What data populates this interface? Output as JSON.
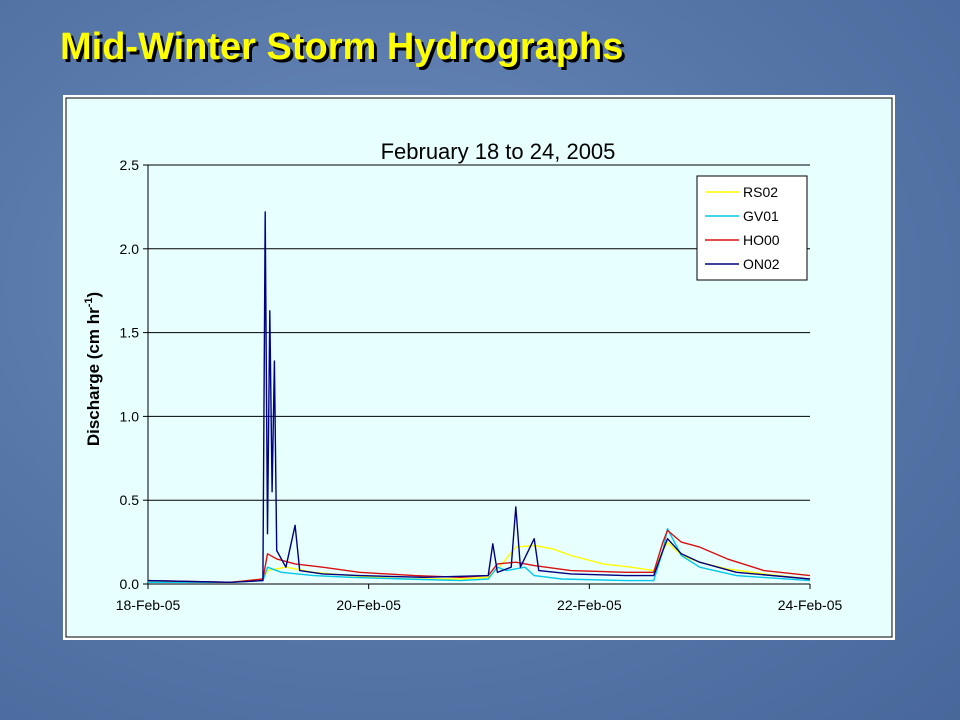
{
  "slide": {
    "title": "Mid-Winter Storm Hydrographs"
  },
  "colors": {
    "plot_background": "#e8ffff",
    "title_color": "#ffff00"
  },
  "chart_data": {
    "type": "line",
    "title": "February 18 to 24, 2005",
    "ylabel": "Discharge (cm hr",
    "ylabel_superscript": "-1",
    "ylabel_close": ")",
    "xlabel": "",
    "xlim": [
      "2005-02-18",
      "2005-02-24"
    ],
    "ylim": [
      0,
      2.5
    ],
    "x_ticks": [
      {
        "date": "2005-02-18",
        "label": "18-Feb-05"
      },
      {
        "date": "2005-02-20",
        "label": "20-Feb-05"
      },
      {
        "date": "2005-02-22",
        "label": "22-Feb-05"
      },
      {
        "date": "2005-02-24",
        "label": "24-Feb-05"
      }
    ],
    "y_ticks": [
      "0.0",
      "0.5",
      "1.0",
      "1.5",
      "2.0",
      "2.5"
    ],
    "y_tick_values": [
      0,
      0.5,
      1.0,
      1.5,
      2.0,
      2.5
    ],
    "grid": "horizontal",
    "legend": "top-right",
    "series": [
      {
        "name": "RS02",
        "color": "#ffff00",
        "points": [
          [
            "2005-02-18T00:00",
            0.01
          ],
          [
            "2005-02-18T18:00",
            0.01
          ],
          [
            "2005-02-19T01:00",
            0.03
          ],
          [
            "2005-02-19T02:00",
            0.08
          ],
          [
            "2005-02-19T06:00",
            0.1
          ],
          [
            "2005-02-19T12:00",
            0.07
          ],
          [
            "2005-02-19T20:00",
            0.05
          ],
          [
            "2005-02-20T08:00",
            0.03
          ],
          [
            "2005-02-20T20:00",
            0.03
          ],
          [
            "2005-02-21T02:00",
            0.04
          ],
          [
            "2005-02-21T05:00",
            0.12
          ],
          [
            "2005-02-21T08:00",
            0.22
          ],
          [
            "2005-02-21T12:00",
            0.23
          ],
          [
            "2005-02-21T16:00",
            0.21
          ],
          [
            "2005-02-21T20:00",
            0.17
          ],
          [
            "2005-02-22T03:00",
            0.12
          ],
          [
            "2005-02-22T09:00",
            0.1
          ],
          [
            "2005-02-22T14:00",
            0.08
          ],
          [
            "2005-02-22T16:00",
            0.2
          ],
          [
            "2005-02-22T17:00",
            0.25
          ],
          [
            "2005-02-22T20:00",
            0.17
          ],
          [
            "2005-02-23T00:00",
            0.13
          ],
          [
            "2005-02-23T06:00",
            0.09
          ],
          [
            "2005-02-23T14:00",
            0.06
          ],
          [
            "2005-02-24T00:00",
            0.03
          ]
        ]
      },
      {
        "name": "GV01",
        "color": "#00c8e8",
        "points": [
          [
            "2005-02-18T00:00",
            0.01
          ],
          [
            "2005-02-18T18:00",
            0.01
          ],
          [
            "2005-02-19T01:00",
            0.02
          ],
          [
            "2005-02-19T02:00",
            0.1
          ],
          [
            "2005-02-19T05:00",
            0.07
          ],
          [
            "2005-02-19T12:00",
            0.05
          ],
          [
            "2005-02-19T20:00",
            0.04
          ],
          [
            "2005-02-20T08:00",
            0.03
          ],
          [
            "2005-02-20T20:00",
            0.02
          ],
          [
            "2005-02-21T02:00",
            0.03
          ],
          [
            "2005-02-21T04:00",
            0.1
          ],
          [
            "2005-02-21T06:00",
            0.08
          ],
          [
            "2005-02-21T10:00",
            0.1
          ],
          [
            "2005-02-21T12:00",
            0.05
          ],
          [
            "2005-02-21T18:00",
            0.03
          ],
          [
            "2005-02-22T08:00",
            0.02
          ],
          [
            "2005-02-22T14:00",
            0.02
          ],
          [
            "2005-02-22T16:00",
            0.2
          ],
          [
            "2005-02-22T17:00",
            0.33
          ],
          [
            "2005-02-22T20:00",
            0.17
          ],
          [
            "2005-02-23T00:00",
            0.1
          ],
          [
            "2005-02-23T08:00",
            0.05
          ],
          [
            "2005-02-24T00:00",
            0.02
          ]
        ]
      },
      {
        "name": "HO00",
        "color": "#d81010",
        "points": [
          [
            "2005-02-18T00:00",
            0.02
          ],
          [
            "2005-02-18T18:00",
            0.01
          ],
          [
            "2005-02-19T01:00",
            0.03
          ],
          [
            "2005-02-19T02:00",
            0.18
          ],
          [
            "2005-02-19T04:00",
            0.15
          ],
          [
            "2005-02-19T08:00",
            0.12
          ],
          [
            "2005-02-19T14:00",
            0.1
          ],
          [
            "2005-02-19T22:00",
            0.07
          ],
          [
            "2005-02-20T10:00",
            0.05
          ],
          [
            "2005-02-20T20:00",
            0.04
          ],
          [
            "2005-02-21T02:00",
            0.05
          ],
          [
            "2005-02-21T04:00",
            0.12
          ],
          [
            "2005-02-21T08:00",
            0.13
          ],
          [
            "2005-02-21T12:00",
            0.11
          ],
          [
            "2005-02-21T20:00",
            0.08
          ],
          [
            "2005-02-22T08:00",
            0.07
          ],
          [
            "2005-02-22T14:00",
            0.07
          ],
          [
            "2005-02-22T16:00",
            0.25
          ],
          [
            "2005-02-22T17:00",
            0.32
          ],
          [
            "2005-02-22T20:00",
            0.25
          ],
          [
            "2005-02-23T00:00",
            0.22
          ],
          [
            "2005-02-23T06:00",
            0.15
          ],
          [
            "2005-02-23T14:00",
            0.08
          ],
          [
            "2005-02-24T00:00",
            0.05
          ]
        ]
      },
      {
        "name": "ON02",
        "color": "#000080",
        "points": [
          [
            "2005-02-18T00:00",
            0.02
          ],
          [
            "2005-02-18T18:00",
            0.01
          ],
          [
            "2005-02-19T01:00",
            0.02
          ],
          [
            "2005-02-19T01:30",
            2.22
          ],
          [
            "2005-02-19T02:00",
            0.3
          ],
          [
            "2005-02-19T02:30",
            1.63
          ],
          [
            "2005-02-19T03:00",
            0.55
          ],
          [
            "2005-02-19T03:30",
            1.33
          ],
          [
            "2005-02-19T04:00",
            0.2
          ],
          [
            "2005-02-19T06:00",
            0.1
          ],
          [
            "2005-02-19T08:00",
            0.35
          ],
          [
            "2005-02-19T09:00",
            0.08
          ],
          [
            "2005-02-19T14:00",
            0.06
          ],
          [
            "2005-02-19T22:00",
            0.05
          ],
          [
            "2005-02-20T12:00",
            0.04
          ],
          [
            "2005-02-21T02:00",
            0.05
          ],
          [
            "2005-02-21T03:00",
            0.24
          ],
          [
            "2005-02-21T04:00",
            0.07
          ],
          [
            "2005-02-21T07:00",
            0.1
          ],
          [
            "2005-02-21T08:00",
            0.46
          ],
          [
            "2005-02-21T09:00",
            0.1
          ],
          [
            "2005-02-21T12:00",
            0.27
          ],
          [
            "2005-02-21T13:00",
            0.08
          ],
          [
            "2005-02-21T20:00",
            0.06
          ],
          [
            "2005-02-22T08:00",
            0.05
          ],
          [
            "2005-02-22T14:00",
            0.05
          ],
          [
            "2005-02-22T16:00",
            0.2
          ],
          [
            "2005-02-22T17:00",
            0.27
          ],
          [
            "2005-02-22T20:00",
            0.18
          ],
          [
            "2005-02-23T00:00",
            0.13
          ],
          [
            "2005-02-23T08:00",
            0.07
          ],
          [
            "2005-02-24T00:00",
            0.03
          ]
        ]
      }
    ]
  }
}
